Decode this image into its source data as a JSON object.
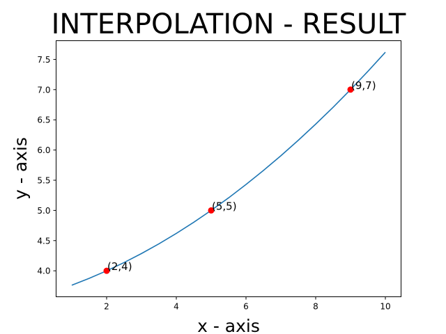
{
  "chart_data": {
    "type": "line",
    "title": "INTERPOLATION - RESULT",
    "xlabel": "x - axis",
    "ylabel": "y - axis",
    "xlim": [
      0.55,
      10.45
    ],
    "ylim": [
      3.57,
      7.81
    ],
    "xticks": [
      2,
      4,
      6,
      8,
      10
    ],
    "xtick_labels": [
      "2",
      "4",
      "6",
      "8",
      "10"
    ],
    "yticks": [
      4.0,
      4.5,
      5.0,
      5.5,
      6.0,
      6.5,
      7.0,
      7.5
    ],
    "ytick_labels": [
      "4.0",
      "4.5",
      "5.0",
      "5.5",
      "6.0",
      "6.5",
      "7.0",
      "7.5"
    ],
    "grid": false,
    "series": [
      {
        "kind": "curve",
        "color": "#1f77b4",
        "x": [
          1,
          1.5,
          2,
          2.5,
          3,
          3.5,
          4,
          4.5,
          5,
          5.5,
          6,
          6.5,
          7,
          7.5,
          8,
          8.5,
          9,
          9.5,
          10
        ],
        "y": [
          3.762,
          3.875,
          4.0,
          4.137,
          4.286,
          4.446,
          4.619,
          4.804,
          5.0,
          5.208,
          5.429,
          5.661,
          5.905,
          6.161,
          6.429,
          6.708,
          7.0,
          7.304,
          7.619
        ]
      },
      {
        "kind": "points",
        "color": "#ff0000",
        "x": [
          2,
          5,
          9
        ],
        "y": [
          4,
          5,
          7
        ]
      }
    ],
    "annotations": [
      {
        "text": "(2,4)",
        "x": 2,
        "y": 4
      },
      {
        "text": "(5,5)",
        "x": 5,
        "y": 5
      },
      {
        "text": "(9,7)",
        "x": 9,
        "y": 7
      }
    ]
  }
}
